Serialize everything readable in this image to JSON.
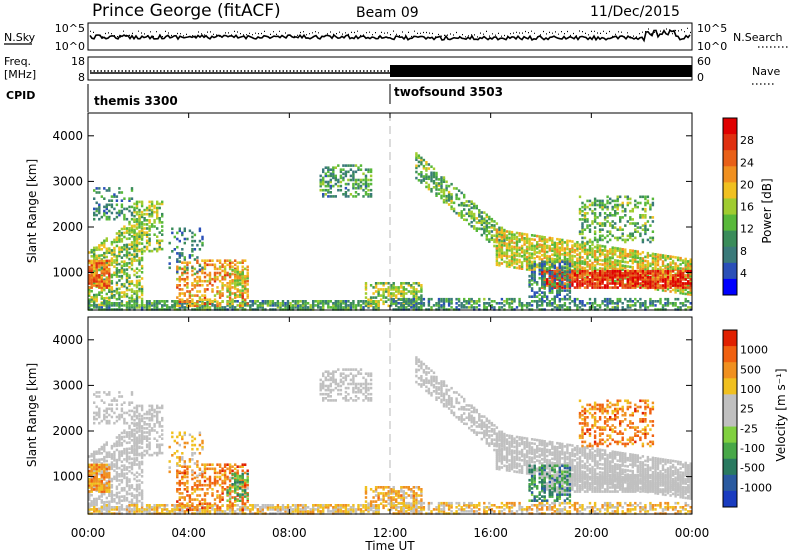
{
  "header": {
    "station": "Prince George (fitACF)",
    "beam": "Beam 09",
    "date": "11/Dec/2015"
  },
  "noise_panel": {
    "left_label": "N.Sky",
    "left_ticks": [
      "10^5",
      "10^0"
    ],
    "right_label": "N.Search",
    "right_ticks": [
      "10^5",
      "10^0"
    ]
  },
  "freq_panel": {
    "left_label_1": "Freq.",
    "left_label_2": "[MHz]",
    "left_ticks": [
      "18",
      "8"
    ],
    "right_label": "Nave",
    "right_ticks": [
      "60",
      "0"
    ]
  },
  "cpid_panel": {
    "label": "CPID",
    "modes": [
      {
        "name": "themis 3300",
        "start_hour": 0
      },
      {
        "name": "twofsound 3503",
        "start_hour": 12
      }
    ]
  },
  "chart_data": [
    {
      "type": "heatmap",
      "name": "power",
      "ylabel": "Slant Range [km]",
      "x_range_hours": [
        0,
        24
      ],
      "ylim": [
        180,
        4500
      ],
      "y_ticks": [
        1000,
        2000,
        3000,
        4000
      ],
      "colorbar": {
        "label": "Power [dB]",
        "ticks": [
          "28",
          "24",
          "20",
          "16",
          "12",
          "8",
          "4"
        ],
        "colors": [
          "#0000ff",
          "#2a4fb8",
          "#3a7a7a",
          "#3a8c5a",
          "#58b83a",
          "#a0cc30",
          "#f0c020",
          "#f09020",
          "#e86018",
          "#e03010",
          "#e00000"
        ]
      }
    },
    {
      "type": "heatmap",
      "name": "velocity",
      "ylabel": "Slant Range [km]",
      "x_range_hours": [
        0,
        24
      ],
      "ylim": [
        180,
        4500
      ],
      "y_ticks": [
        1000,
        2000,
        3000,
        4000
      ],
      "colorbar": {
        "label": "Velocity [m s⁻¹]",
        "ticks": [
          "1000",
          "500",
          "100",
          "25",
          "-25",
          "-100",
          "-500",
          "-1000"
        ],
        "colors": [
          "#1a3cc0",
          "#2a5aa0",
          "#2a7a60",
          "#48a848",
          "#80d040",
          "#c0c0c0",
          "#c0c0c0",
          "#f0c020",
          "#f09020",
          "#f06010",
          "#e02000"
        ]
      }
    }
  ],
  "x_axis": {
    "tick_labels": [
      "00:00",
      "04:00",
      "08:00",
      "12:00",
      "16:00",
      "20:00",
      "00:00"
    ],
    "title": "Time UT"
  },
  "colors": {
    "accent_dash": "#b8b8b8",
    "gs_gray": "#c0c0c0"
  }
}
